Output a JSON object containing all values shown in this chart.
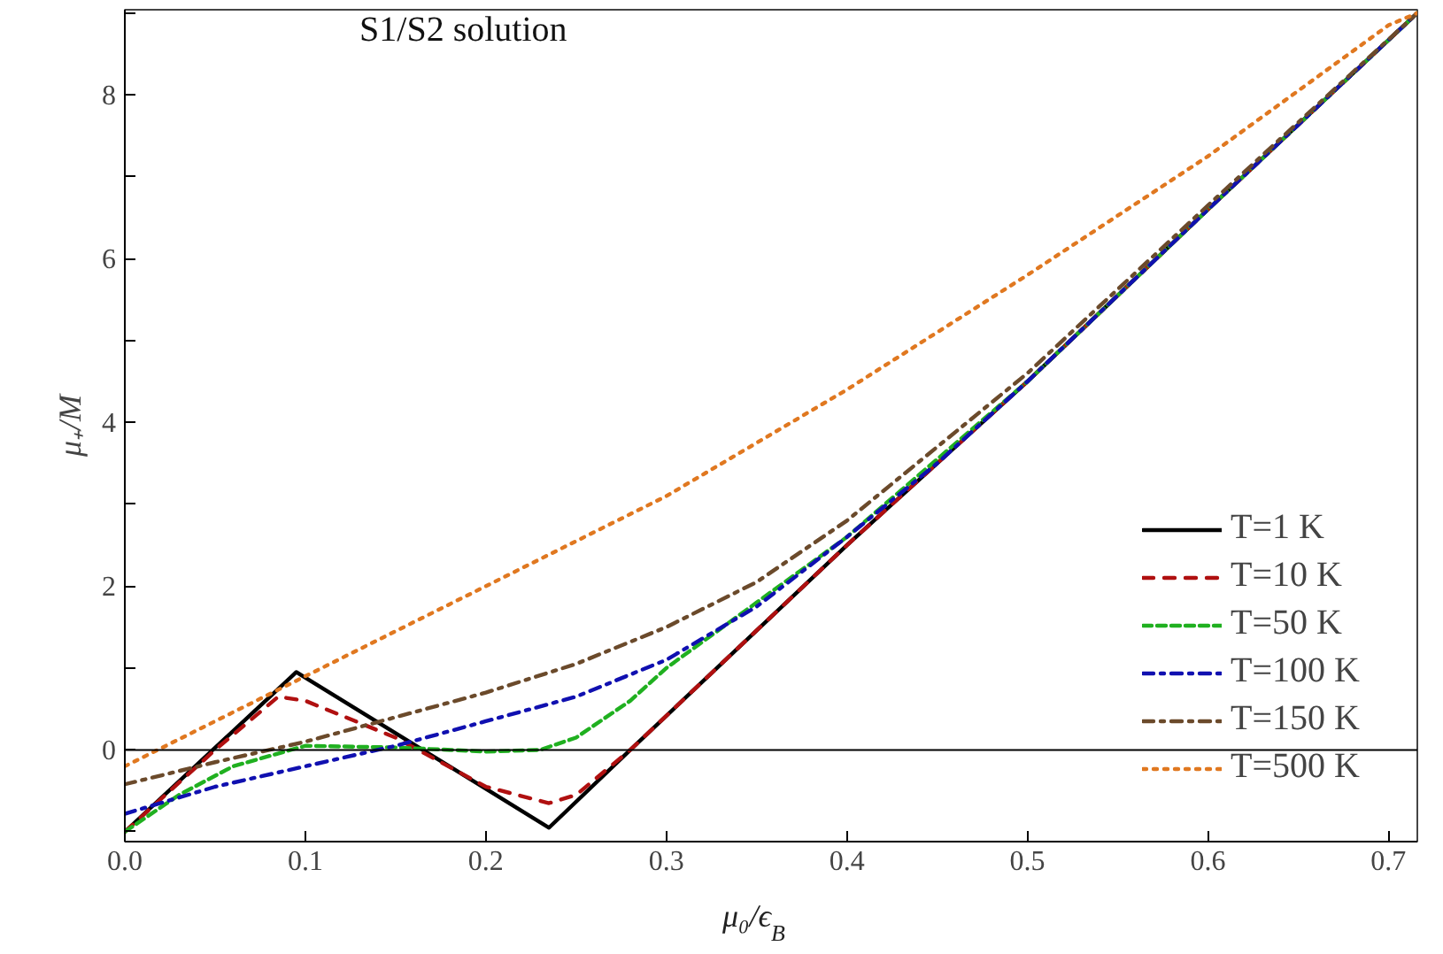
{
  "chart_data": {
    "type": "line",
    "xlabel": "μ₀/ϵ$_{B}$",
    "ylabel": "μ₊/M",
    "annotations": [
      "S1/S2 solution"
    ],
    "xlim": [
      0,
      0.716
    ],
    "ylim": [
      -1.12,
      9.04
    ],
    "xticks": [
      {
        "value": 0,
        "label": "0.0"
      },
      {
        "value": 0.1,
        "label": "0.1"
      },
      {
        "value": 0.2,
        "label": "0.2"
      },
      {
        "value": 0.3,
        "label": "0.3"
      },
      {
        "value": 0.4,
        "label": "0.4"
      },
      {
        "value": 0.5,
        "label": "0.5"
      },
      {
        "value": 0.6,
        "label": "0.6"
      },
      {
        "value": 0.7,
        "label": "0.7"
      }
    ],
    "yticks": [
      0,
      2,
      4,
      6,
      8,
      {
        "value": -1,
        "label": null
      },
      {
        "value": 1,
        "label": null
      },
      {
        "value": 3,
        "label": null
      },
      {
        "value": 5,
        "label": null
      },
      {
        "value": 7,
        "label": null
      },
      {
        "value": 9,
        "label": null
      }
    ],
    "grid": false,
    "legend": "right",
    "ref_lines": [
      {
        "axis": "y",
        "value": 0,
        "color": "#000000"
      }
    ],
    "series": [
      {
        "name": "T=1 K",
        "color": "#000000",
        "line_style": "solid",
        "x": [
          0,
          0.095,
          0.235,
          0.28,
          0.4,
          0.5,
          0.6,
          0.716
        ],
        "values": [
          -1,
          0.95,
          -0.95,
          0,
          2.5,
          4.5,
          6.6,
          9.0
        ]
      },
      {
        "name": "T=10 K",
        "color": "#b01010",
        "line_style": "dashed",
        "x": [
          0,
          0.05,
          0.085,
          0.1,
          0.15,
          0.2,
          0.235,
          0.25,
          0.28,
          0.4,
          0.5,
          0.6,
          0.716
        ],
        "values": [
          -1,
          0,
          0.65,
          0.6,
          0.15,
          -0.45,
          -0.65,
          -0.55,
          0,
          2.5,
          4.5,
          6.6,
          9.0
        ]
      },
      {
        "name": "T=50 K",
        "color": "#20b020",
        "line_style": "dashed",
        "x": [
          0,
          0.03,
          0.06,
          0.1,
          0.15,
          0.2,
          0.23,
          0.25,
          0.28,
          0.3,
          0.35,
          0.4,
          0.5,
          0.6,
          0.716
        ],
        "values": [
          -1,
          -0.55,
          -0.2,
          0.05,
          0.03,
          -0.02,
          0,
          0.15,
          0.6,
          1.0,
          1.8,
          2.6,
          4.5,
          6.6,
          9.0
        ]
      },
      {
        "name": "T=100 K",
        "color": "#1010b0",
        "line_style": "dashdot",
        "x": [
          0,
          0.05,
          0.1,
          0.15,
          0.2,
          0.25,
          0.3,
          0.35,
          0.4,
          0.45,
          0.5,
          0.6,
          0.716
        ],
        "values": [
          -0.78,
          -0.45,
          -0.2,
          0.05,
          0.35,
          0.65,
          1.1,
          1.75,
          2.6,
          3.5,
          4.5,
          6.6,
          9.0
        ]
      },
      {
        "name": "T=150 K",
        "color": "#6b4a2b",
        "line_style": "dashdot",
        "x": [
          0,
          0.05,
          0.1,
          0.15,
          0.2,
          0.25,
          0.3,
          0.35,
          0.4,
          0.45,
          0.5,
          0.6,
          0.716
        ],
        "values": [
          -0.42,
          -0.15,
          0.1,
          0.4,
          0.7,
          1.05,
          1.5,
          2.05,
          2.8,
          3.7,
          4.6,
          6.65,
          9.0
        ]
      },
      {
        "name": "T=500 K",
        "color": "#e07820",
        "line_style": "dotted",
        "x": [
          0,
          0.05,
          0.1,
          0.15,
          0.2,
          0.3,
          0.4,
          0.5,
          0.6,
          0.7,
          0.716
        ],
        "values": [
          -0.2,
          0.35,
          0.9,
          1.45,
          2.0,
          3.1,
          4.4,
          5.8,
          7.25,
          8.85,
          9.0
        ]
      }
    ]
  }
}
